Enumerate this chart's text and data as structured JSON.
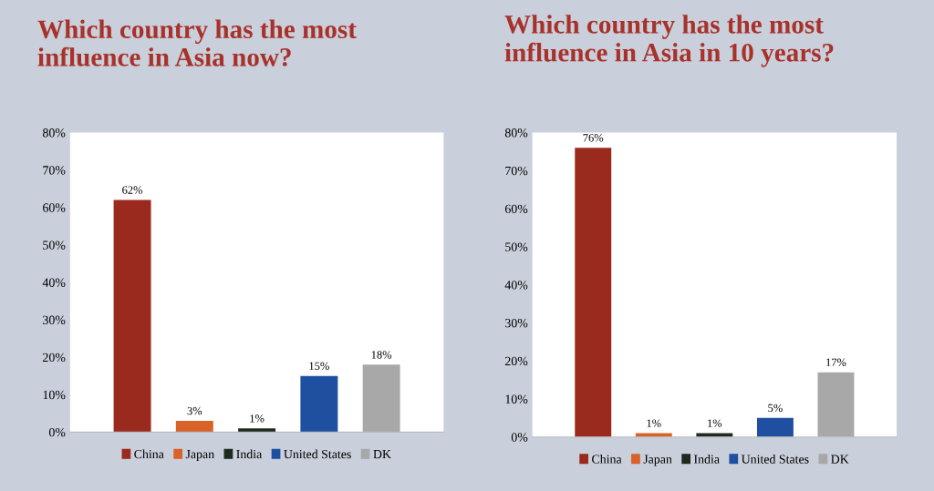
{
  "chart_data": [
    {
      "type": "bar",
      "title": "Which country has the most\ninfluence in Asia now?",
      "categories": [
        null
      ],
      "ylim": [
        0,
        80
      ],
      "yticks": [
        {
          "value": 0,
          "label": "0%"
        },
        {
          "value": 10,
          "label": "10%"
        },
        {
          "value": 20,
          "label": "20%"
        },
        {
          "value": 30,
          "label": "30%"
        },
        {
          "value": 40,
          "label": "40%"
        },
        {
          "value": 50,
          "label": "50%"
        },
        {
          "value": 60,
          "label": "60%"
        },
        {
          "value": 70,
          "label": "70%"
        },
        {
          "value": 80,
          "label": "80%"
        }
      ],
      "tick_labels": "y",
      "grid": false,
      "legend": "bottom",
      "series": [
        {
          "name": "China",
          "color": "#9b2a1e",
          "values": [
            62
          ],
          "value_labels": [
            "62%"
          ]
        },
        {
          "name": "Japan",
          "color": "#d8622a",
          "values": [
            3
          ],
          "value_labels": [
            "3%"
          ]
        },
        {
          "name": "India",
          "color": "#1f2a1f",
          "values": [
            1
          ],
          "value_labels": [
            "1%"
          ]
        },
        {
          "name": "United States",
          "color": "#1f4fa0",
          "values": [
            15
          ],
          "value_labels": [
            "15%"
          ]
        },
        {
          "name": "DK",
          "color": "#a8a8a8",
          "values": [
            18
          ],
          "value_labels": [
            "18%"
          ]
        }
      ]
    },
    {
      "type": "bar",
      "title": "Which country has the most\ninfluence in Asia in 10 years?",
      "categories": [
        null
      ],
      "ylim": [
        0,
        80
      ],
      "yticks": [
        {
          "value": 0,
          "label": "0%"
        },
        {
          "value": 10,
          "label": "10%"
        },
        {
          "value": 20,
          "label": "20%"
        },
        {
          "value": 30,
          "label": "30%"
        },
        {
          "value": 40,
          "label": "40%"
        },
        {
          "value": 50,
          "label": "50%"
        },
        {
          "value": 60,
          "label": "60%"
        },
        {
          "value": 70,
          "label": "70%"
        },
        {
          "value": 80,
          "label": "80%"
        }
      ],
      "tick_labels": "y",
      "grid": false,
      "legend": "bottom",
      "series": [
        {
          "name": "China",
          "color": "#9b2a1e",
          "values": [
            76
          ],
          "value_labels": [
            "76%"
          ]
        },
        {
          "name": "Japan",
          "color": "#d8622a",
          "values": [
            1
          ],
          "value_labels": [
            "1%"
          ]
        },
        {
          "name": "India",
          "color": "#1f2a1f",
          "values": [
            1
          ],
          "value_labels": [
            "1%"
          ]
        },
        {
          "name": "United States",
          "color": "#1f4fa0",
          "values": [
            5
          ],
          "value_labels": [
            "5%"
          ]
        },
        {
          "name": "DK",
          "color": "#a8a8a8",
          "values": [
            17
          ],
          "value_labels": [
            "17%"
          ]
        }
      ]
    }
  ]
}
